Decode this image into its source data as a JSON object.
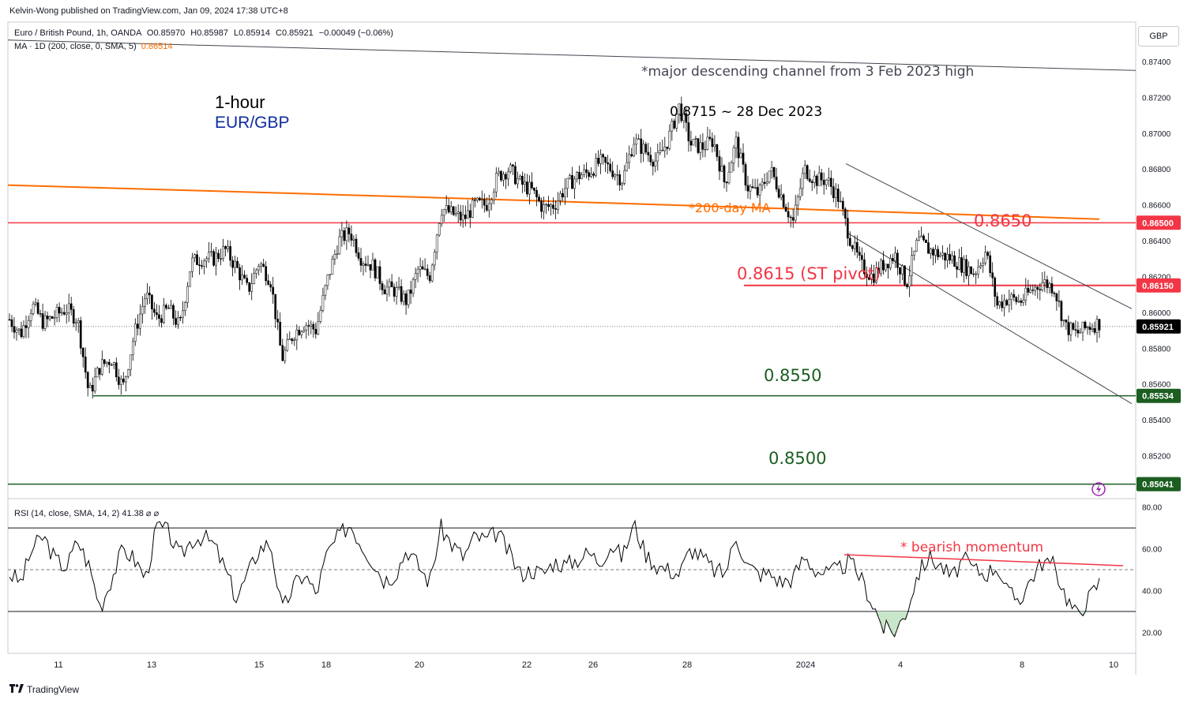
{
  "header": {
    "publisher": "Kelvin-Wong published on TradingView.com, Jan 09, 2024 17:38 UTC+8",
    "symbol": "Euro / British Pound, 1h, OANDA",
    "o_label": "O",
    "o_val": "0.85970",
    "h_label": "H",
    "h_val": "0.85987",
    "l_label": "L",
    "l_val": "0.85914",
    "c_label": "C",
    "c_val": "0.85921",
    "change": "−0.00049 (−0.06%)",
    "ma_label": "MA · 1D (200, close, 0, SMA, 5)",
    "ma_value": "0.86514",
    "currency": "GBP"
  },
  "annotations": {
    "timeframe": "1-hour",
    "pair": "EUR/GBP",
    "channel_note": "*major descending channel from 3 Feb 2023 high",
    "high_note": "0.8715 ~ 28 Dec 2023",
    "ma_note": "*200-day MA",
    "level_8650": "0.8650",
    "pivot_note": "0.8615 (ST pivot)",
    "level_8550": "0.8550",
    "level_8500": "0.8500",
    "rsi_note": "* bearish momentum"
  },
  "rsi_header": "RSI (14, close, SMA, 14, 2)  41.38  ⌀  ⌀",
  "footer": {
    "brand": "TradingView"
  },
  "colors": {
    "resistance": "#f23645",
    "support": "#1b5e20",
    "ma": "#ff6d00",
    "pair": "#0d2ca0",
    "candle": "#000000"
  },
  "icons": [
    "lightning-icon",
    "tradingview-logo-icon"
  ],
  "chart_data": [
    {
      "type": "line",
      "subtype": "candlestick",
      "instrument": "EUR/GBP",
      "ylim": [
        0.8496,
        0.8762
      ],
      "y_ticks": [
        0.874,
        0.872,
        0.87,
        0.868,
        0.866,
        0.864,
        0.862,
        0.86,
        0.858,
        0.856,
        0.854,
        0.852
      ],
      "x_tick_labels": [
        "11",
        "13",
        "15",
        "18",
        "20",
        "22",
        "26",
        "28",
        "2024",
        "4",
        "8",
        "10"
      ],
      "price_tags": [
        {
          "label": "0.86500",
          "value": 0.865,
          "kind": "red"
        },
        {
          "label": "0.86150",
          "value": 0.8615,
          "kind": "red"
        },
        {
          "label": "0.85921",
          "value": 0.85921,
          "kind": "black"
        },
        {
          "label": "0.85534",
          "value": 0.85534,
          "kind": "green"
        },
        {
          "label": "0.85041",
          "value": 0.85041,
          "kind": "green"
        }
      ],
      "horizontal_levels": [
        0.865,
        0.8615,
        0.85534,
        0.85041
      ],
      "price_path": [
        0.8596,
        0.8588,
        0.8604,
        0.8594,
        0.8598,
        0.8602,
        0.8596,
        0.8554,
        0.857,
        0.8574,
        0.8558,
        0.8588,
        0.861,
        0.8596,
        0.8602,
        0.8592,
        0.8628,
        0.863,
        0.863,
        0.8635,
        0.8625,
        0.8612,
        0.8628,
        0.8618,
        0.8574,
        0.8588,
        0.8594,
        0.859,
        0.8618,
        0.864,
        0.8645,
        0.863,
        0.8626,
        0.8614,
        0.8612,
        0.8606,
        0.8624,
        0.862,
        0.8658,
        0.8655,
        0.8652,
        0.866,
        0.866,
        0.8676,
        0.868,
        0.8672,
        0.8668,
        0.8658,
        0.866,
        0.867,
        0.8676,
        0.8678,
        0.8684,
        0.868,
        0.8674,
        0.8696,
        0.869,
        0.8684,
        0.8696,
        0.8715,
        0.8694,
        0.8692,
        0.8696,
        0.8672,
        0.8695,
        0.867,
        0.8666,
        0.868,
        0.8665,
        0.865,
        0.868,
        0.8674,
        0.8674,
        0.8664,
        0.8642,
        0.8626,
        0.862,
        0.8627,
        0.8632,
        0.8616,
        0.864,
        0.8635,
        0.8632,
        0.863,
        0.8626,
        0.8622,
        0.8634,
        0.8604,
        0.8608,
        0.8606,
        0.8612,
        0.8617,
        0.8614,
        0.8592,
        0.8588,
        0.8592,
        0.8594
      ],
      "moving_average": {
        "name": "200-day MA",
        "start": 0.8671,
        "end": 0.8652
      },
      "channel": {
        "upper_start": 0.8752,
        "upper_end": 0.8735,
        "inner_upper_start": 0.8683,
        "inner_upper_end": 0.8602,
        "inner_lower_start": 0.8644,
        "inner_lower_end": 0.8549
      }
    },
    {
      "type": "line",
      "name": "RSI (14, close, SMA, 14, 2)",
      "ylim": [
        10,
        84
      ],
      "y_ticks": [
        80,
        60,
        40,
        20
      ],
      "overbought": 70,
      "oversold": 30,
      "midline": 50,
      "last_value": 41.38,
      "values": [
        48,
        44,
        60,
        66,
        55,
        51,
        64,
        52,
        32,
        46,
        60,
        55,
        46,
        71,
        68,
        56,
        64,
        66,
        62,
        50,
        36,
        48,
        60,
        63,
        30,
        42,
        48,
        38,
        58,
        66,
        72,
        62,
        54,
        45,
        48,
        60,
        52,
        44,
        70,
        62,
        56,
        66,
        64,
        68,
        58,
        48,
        50,
        48,
        54,
        52,
        55,
        58,
        54,
        62,
        56,
        72,
        58,
        52,
        50,
        48,
        60,
        56,
        50,
        48,
        66,
        52,
        48,
        48,
        44,
        46,
        56,
        50,
        48,
        50,
        54,
        46,
        34,
        22,
        20,
        30,
        48,
        56,
        52,
        46,
        55,
        50,
        48,
        52,
        38,
        36,
        46,
        54,
        52,
        38,
        28,
        36,
        44
      ]
    }
  ]
}
